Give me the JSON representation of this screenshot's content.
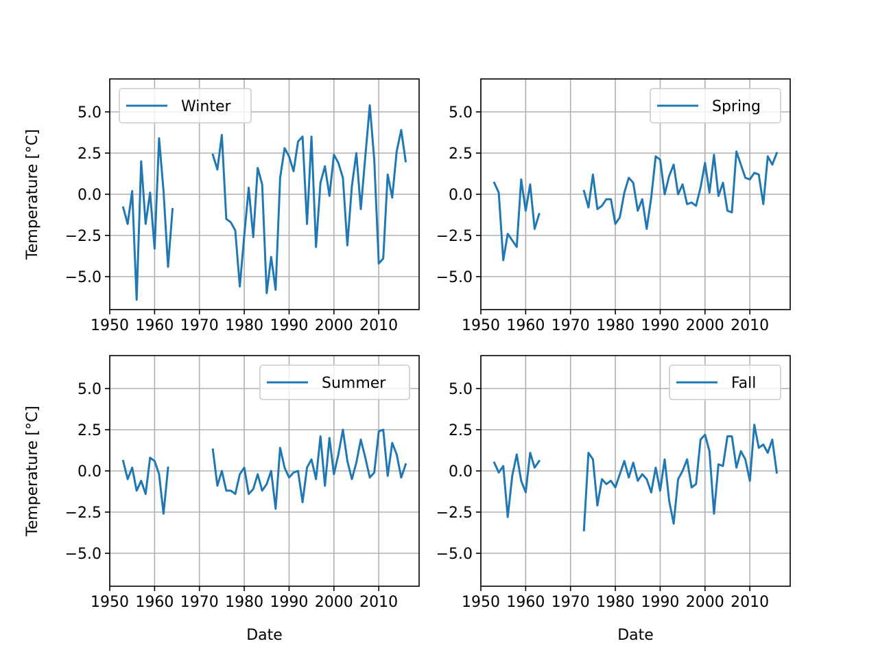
{
  "chart_data": [
    {
      "type": "line",
      "series": [
        {
          "name": "Winter",
          "color": "#1f77b4",
          "points": [
            [
              1953,
              -0.8
            ],
            [
              1954,
              -1.8
            ],
            [
              1955,
              0.2
            ],
            [
              1956,
              -6.4
            ],
            [
              1957,
              2.0
            ],
            [
              1958,
              -1.8
            ],
            [
              1959,
              0.1
            ],
            [
              1960,
              -3.3
            ],
            [
              1961,
              3.4
            ],
            [
              1962,
              0.2
            ],
            [
              1963,
              -4.4
            ],
            [
              1964,
              -0.9
            ],
            null,
            [
              1973,
              2.4
            ],
            [
              1974,
              1.5
            ],
            [
              1975,
              3.6
            ],
            [
              1976,
              -1.5
            ],
            [
              1977,
              -1.7
            ],
            [
              1978,
              -2.2
            ],
            [
              1979,
              -5.6
            ],
            [
              1980,
              -2.5
            ],
            [
              1981,
              0.4
            ],
            [
              1982,
              -2.6
            ],
            [
              1983,
              1.6
            ],
            [
              1984,
              0.6
            ],
            [
              1985,
              -6.0
            ],
            [
              1986,
              -3.8
            ],
            [
              1987,
              -5.8
            ],
            [
              1988,
              1.0
            ],
            [
              1989,
              2.8
            ],
            [
              1990,
              2.3
            ],
            [
              1991,
              1.4
            ],
            [
              1992,
              3.2
            ],
            [
              1993,
              3.5
            ],
            [
              1994,
              -1.8
            ],
            [
              1995,
              3.5
            ],
            [
              1996,
              -3.2
            ],
            [
              1997,
              0.7
            ],
            [
              1998,
              1.7
            ],
            [
              1999,
              -0.1
            ],
            [
              2000,
              2.4
            ],
            [
              2001,
              1.9
            ],
            [
              2002,
              1.0
            ],
            [
              2003,
              -3.1
            ],
            [
              2004,
              0.5
            ],
            [
              2005,
              2.5
            ],
            [
              2006,
              -0.9
            ],
            [
              2007,
              2.3
            ],
            [
              2008,
              5.4
            ],
            [
              2009,
              2.1
            ],
            [
              2010,
              -4.2
            ],
            [
              2011,
              -3.9
            ],
            [
              2012,
              1.2
            ],
            [
              2013,
              -0.2
            ],
            [
              2014,
              2.6
            ],
            [
              2015,
              3.9
            ],
            [
              2016,
              2.0
            ]
          ]
        }
      ],
      "xlabel": "",
      "ylabel": "Temperature [°C]",
      "xlim": [
        1950,
        2019
      ],
      "ylim": [
        -7,
        7
      ],
      "xticks": [
        "1950",
        "1960",
        "1970",
        "1980",
        "1990",
        "2000",
        "2010"
      ],
      "yticks": [
        "−5.0",
        "−2.5",
        "0.0",
        "2.5",
        "5.0"
      ],
      "grid": true,
      "legend_loc": "upper-left"
    },
    {
      "type": "line",
      "series": [
        {
          "name": "Spring",
          "color": "#1f77b4",
          "points": [
            [
              1953,
              0.7
            ],
            [
              1954,
              0.1
            ],
            [
              1955,
              -4.0
            ],
            [
              1956,
              -2.4
            ],
            [
              1957,
              -2.8
            ],
            [
              1958,
              -3.2
            ],
            [
              1959,
              0.9
            ],
            [
              1960,
              -1.0
            ],
            [
              1961,
              0.6
            ],
            [
              1962,
              -2.1
            ],
            [
              1963,
              -1.2
            ],
            null,
            [
              1973,
              0.2
            ],
            [
              1974,
              -0.8
            ],
            [
              1975,
              1.2
            ],
            [
              1976,
              -0.9
            ],
            [
              1977,
              -0.7
            ],
            [
              1978,
              -0.3
            ],
            [
              1979,
              -0.3
            ],
            [
              1980,
              -1.8
            ],
            [
              1981,
              -1.4
            ],
            [
              1982,
              0.1
            ],
            [
              1983,
              1.0
            ],
            [
              1984,
              0.7
            ],
            [
              1985,
              -1.0
            ],
            [
              1986,
              -0.3
            ],
            [
              1987,
              -2.1
            ],
            [
              1988,
              -0.2
            ],
            [
              1989,
              2.3
            ],
            [
              1990,
              2.1
            ],
            [
              1991,
              0.0
            ],
            [
              1992,
              1.1
            ],
            [
              1993,
              1.8
            ],
            [
              1994,
              0.0
            ],
            [
              1995,
              0.6
            ],
            [
              1996,
              -0.6
            ],
            [
              1997,
              -0.5
            ],
            [
              1998,
              -0.7
            ],
            [
              1999,
              0.4
            ],
            [
              2000,
              1.9
            ],
            [
              2001,
              0.1
            ],
            [
              2002,
              2.4
            ],
            [
              2003,
              -0.1
            ],
            [
              2004,
              0.7
            ],
            [
              2005,
              -1.0
            ],
            [
              2006,
              -1.1
            ],
            [
              2007,
              2.6
            ],
            [
              2008,
              1.8
            ],
            [
              2009,
              1.0
            ],
            [
              2010,
              0.9
            ],
            [
              2011,
              1.3
            ],
            [
              2012,
              1.2
            ],
            [
              2013,
              -0.6
            ],
            [
              2014,
              2.3
            ],
            [
              2015,
              1.8
            ],
            [
              2016,
              2.5
            ]
          ]
        }
      ],
      "xlabel": "",
      "ylabel": "",
      "xlim": [
        1950,
        2019
      ],
      "ylim": [
        -7,
        7
      ],
      "xticks": [
        "1950",
        "1960",
        "1970",
        "1980",
        "1990",
        "2000",
        "2010"
      ],
      "yticks": [
        "−5.0",
        "−2.5",
        "0.0",
        "2.5",
        "5.0"
      ],
      "grid": true,
      "legend_loc": "upper-right"
    },
    {
      "type": "line",
      "series": [
        {
          "name": "Summer",
          "color": "#1f77b4",
          "points": [
            [
              1953,
              0.6
            ],
            [
              1954,
              -0.5
            ],
            [
              1955,
              0.2
            ],
            [
              1956,
              -1.2
            ],
            [
              1957,
              -0.6
            ],
            [
              1958,
              -1.4
            ],
            [
              1959,
              0.8
            ],
            [
              1960,
              0.6
            ],
            [
              1961,
              -0.2
            ],
            [
              1962,
              -2.6
            ],
            [
              1963,
              0.2
            ],
            null,
            [
              1973,
              1.3
            ],
            [
              1974,
              -0.9
            ],
            [
              1975,
              0.0
            ],
            [
              1976,
              -1.2
            ],
            [
              1977,
              -1.2
            ],
            [
              1978,
              -1.4
            ],
            [
              1979,
              -0.2
            ],
            [
              1980,
              0.2
            ],
            [
              1981,
              -1.4
            ],
            [
              1982,
              -1.1
            ],
            [
              1983,
              -0.2
            ],
            [
              1984,
              -1.2
            ],
            [
              1985,
              -0.8
            ],
            [
              1986,
              0.0
            ],
            [
              1987,
              -2.3
            ],
            [
              1988,
              1.4
            ],
            [
              1989,
              0.2
            ],
            [
              1990,
              -0.4
            ],
            [
              1991,
              -0.1
            ],
            [
              1992,
              0.0
            ],
            [
              1993,
              -1.9
            ],
            [
              1994,
              0.2
            ],
            [
              1995,
              0.7
            ],
            [
              1996,
              -0.5
            ],
            [
              1997,
              2.1
            ],
            [
              1998,
              -0.9
            ],
            [
              1999,
              2.0
            ],
            [
              2000,
              -0.2
            ],
            [
              2001,
              1.0
            ],
            [
              2002,
              2.5
            ],
            [
              2003,
              0.6
            ],
            [
              2004,
              -0.5
            ],
            [
              2005,
              0.5
            ],
            [
              2006,
              1.9
            ],
            [
              2007,
              0.8
            ],
            [
              2008,
              -0.4
            ],
            [
              2009,
              -0.1
            ],
            [
              2010,
              2.4
            ],
            [
              2011,
              2.5
            ],
            [
              2012,
              -0.3
            ],
            [
              2013,
              1.7
            ],
            [
              2014,
              1.0
            ],
            [
              2015,
              -0.4
            ],
            [
              2016,
              0.4
            ]
          ]
        }
      ],
      "xlabel": "Date",
      "ylabel": "Temperature [°C]",
      "xlim": [
        1950,
        2019
      ],
      "ylim": [
        -7,
        7
      ],
      "xticks": [
        "1950",
        "1960",
        "1970",
        "1980",
        "1990",
        "2000",
        "2010"
      ],
      "yticks": [
        "−5.0",
        "−2.5",
        "0.0",
        "2.5",
        "5.0"
      ],
      "grid": true,
      "legend_loc": "upper-right"
    },
    {
      "type": "line",
      "series": [
        {
          "name": "Fall",
          "color": "#1f77b4",
          "points": [
            [
              1953,
              0.5
            ],
            [
              1954,
              -0.1
            ],
            [
              1955,
              0.3
            ],
            [
              1956,
              -2.8
            ],
            [
              1957,
              -0.3
            ],
            [
              1958,
              1.0
            ],
            [
              1959,
              -0.6
            ],
            [
              1960,
              -1.3
            ],
            [
              1961,
              1.1
            ],
            [
              1962,
              0.2
            ],
            [
              1963,
              0.6
            ],
            null,
            [
              1973,
              -3.6
            ],
            [
              1974,
              1.1
            ],
            [
              1975,
              0.7
            ],
            [
              1976,
              -2.1
            ],
            [
              1977,
              -0.5
            ],
            [
              1978,
              -0.8
            ],
            [
              1979,
              -0.6
            ],
            [
              1980,
              -1.0
            ],
            [
              1981,
              -0.2
            ],
            [
              1982,
              0.6
            ],
            [
              1983,
              -0.4
            ],
            [
              1984,
              0.5
            ],
            [
              1985,
              -0.6
            ],
            [
              1986,
              -0.2
            ],
            [
              1987,
              -0.5
            ],
            [
              1988,
              -1.3
            ],
            [
              1989,
              0.2
            ],
            [
              1990,
              -1.2
            ],
            [
              1991,
              0.7
            ],
            [
              1992,
              -1.8
            ],
            [
              1993,
              -3.2
            ],
            [
              1994,
              -0.5
            ],
            [
              1995,
              0.0
            ],
            [
              1996,
              0.7
            ],
            [
              1997,
              -1.0
            ],
            [
              1998,
              -0.8
            ],
            [
              1999,
              1.9
            ],
            [
              2000,
              2.2
            ],
            [
              2001,
              1.2
            ],
            [
              2002,
              -2.6
            ],
            [
              2003,
              0.4
            ],
            [
              2004,
              0.3
            ],
            [
              2005,
              2.1
            ],
            [
              2006,
              2.1
            ],
            [
              2007,
              0.2
            ],
            [
              2008,
              1.2
            ],
            [
              2009,
              0.7
            ],
            [
              2010,
              -0.6
            ],
            [
              2011,
              2.8
            ],
            [
              2012,
              1.4
            ],
            [
              2013,
              1.6
            ],
            [
              2014,
              1.1
            ],
            [
              2015,
              1.9
            ],
            [
              2016,
              -0.1
            ]
          ]
        }
      ],
      "xlabel": "Date",
      "ylabel": "",
      "xlim": [
        1950,
        2019
      ],
      "ylim": [
        -7,
        7
      ],
      "xticks": [
        "1950",
        "1960",
        "1970",
        "1980",
        "1990",
        "2000",
        "2010"
      ],
      "yticks": [
        "−5.0",
        "−2.5",
        "0.0",
        "2.5",
        "5.0"
      ],
      "grid": true,
      "legend_loc": "upper-right"
    }
  ]
}
